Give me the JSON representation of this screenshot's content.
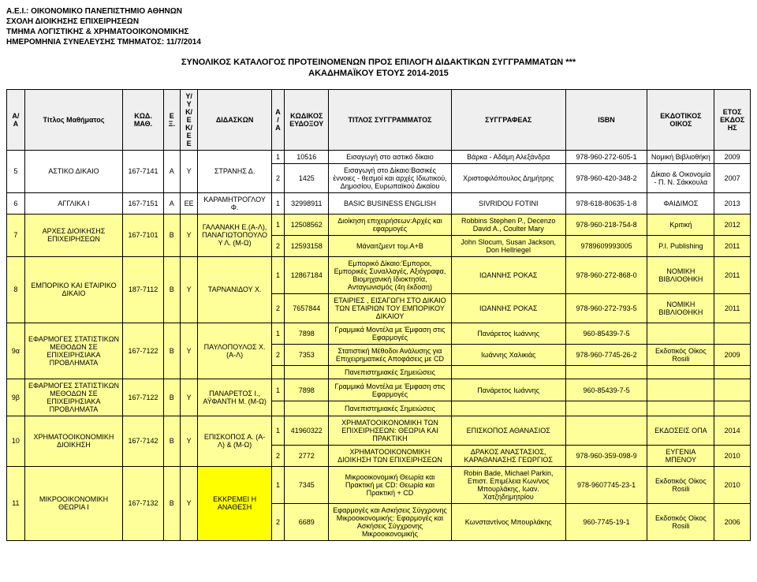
{
  "header": {
    "l1": "Α.Ε.Ι.: ΟΙΚΟΝΟΜΙΚΟ ΠΑΝΕΠΙΣΤΗΜΙΟ ΑΘΗΝΩΝ",
    "l2": "ΣΧΟΛΗ ΔΙΟΙΚΗΣΗΣ ΕΠΙΧΕΙΡΗΣΕΩΝ",
    "l3": "ΤΜΗΜΑ ΛΟΓΙΣΤΙΚΗΣ & ΧΡΗΜΑΤΟΟΙΚΟΝΟΜΙΚΗΣ",
    "l4": "ΗΜΕΡΟΜΗΝΙΑ ΣΥΝΕΛΕΥΣΗΣ ΤΜΗΜΑΤΟΣ: 11/7/2014"
  },
  "title": {
    "l1": "ΣΥΝΟΛΙΚΟΣ ΚΑΤΑΛΟΓΟΣ ΠΡΟΤΕΙΝΟΜΕΝΩΝ ΠΡΟΣ ΕΠΙΛΟΓΗ ΔΙΔΑΚΤΙΚΩΝ ΣΥΓΓΡΑΜΜΑΤΩΝ ***",
    "l2": "ΑΚΑΔΗΜΑΪΚΟΥ ΕΤΟΥΣ 2014-2015"
  },
  "columns": {
    "aa": "Α/Α",
    "course": "Τίτλος Μαθήματος",
    "code": "ΚΩΔ. ΜΑΘ.",
    "ex": "ΕΞ.",
    "yy": "Υ/Υ Κ/Ε Κ/Ε Ε",
    "instructor": "ΔΙΔΑΣΚΩΝ",
    "aa2": "Α/Α",
    "pubcode": "ΚΩΔΙΚΟΣ ΕΥΔΟΞΟΥ",
    "booktitle": "ΤΙΤΛΟΣ ΣΥΓΓΡΑΜΜΑΤΟΣ",
    "author": "ΣΥΓΓΡΑΦΕΑΣ",
    "isbn": "ISBN",
    "pubhouse": "ΕΚΔΟΤΙΚΟΣ ΟΙΚΟΣ",
    "year": "ΕΤΟΣ ΕΚΔΟΣΗΣ"
  },
  "rows": {
    "r5": {
      "aa": "5",
      "course": "ΑΣΤΙΚΟ ΔΙΚΑΙΟ",
      "code": "167-7141",
      "ex": "Α",
      "yy": "Υ",
      "instr": "ΣΤΡΑΝΗΣ Δ.",
      "b1": {
        "n": "1",
        "code": "10516",
        "title": "Εισαγωγή στο αστικό δίκαιο",
        "author": "Βάρκα - Αδάμη Αλεξάνδρα",
        "isbn": "978-960-272-605-1",
        "pub": "Νομική Βιβλιοθήκη",
        "year": "2009"
      },
      "b2": {
        "n": "2",
        "code": "1425",
        "title": "Εισαγωγή στο Δίκαιο:Βασικές έννοιες - θεσμοί και αρχές Ιδιωτικού, Δημοσίου, Ευρωπαϊκού Δικαίου",
        "author": "Χριστοφιλόπουλος Δημήτρης",
        "isbn": "978-960-420-348-2",
        "pub": "Δίκαιο & Οικονομία - Π. Ν. Σάκκουλα",
        "year": "2007"
      }
    },
    "r6": {
      "aa": "6",
      "course": "ΑΓΓΛΙΚΑ Ι",
      "code": "167-7151",
      "ex": "Α",
      "yy": "ΕΕ",
      "instr": "ΚΑΡΑΜΗΤΡΟΓΛΟΥ Φ.",
      "b1": {
        "n": "1",
        "code": "32998911",
        "title": "BASIC BUSINESS ENGLISH",
        "author": "SIVRIDOU FOTINI",
        "isbn": "978-618-80635-1-8",
        "pub": "ΦΑΙΔΙΜΟΣ",
        "year": "2013"
      }
    },
    "r7": {
      "aa": "7",
      "course": "ΑΡΧΕΣ ΔΙΟΙΚΗΣΗΣ ΕΠΙΧΕΙΡΗΣΕΩΝ",
      "code": "167-7101",
      "ex": "Β",
      "yy": "Υ",
      "instr": "ΓΑΛΑΝΑΚΗ Ε.(Α-Λ), ΠΑΝΑΓΙΩΤΟΠΟΥΛΟΥ Λ. (Μ-Ω)",
      "b1": {
        "n": "1",
        "code": "12508562",
        "title": "Διοίκηση επιχειρήσεων:Αρχές και εφαρμογές",
        "author": "Robbins Stephen P., Decenzo David A., Coulter Mary",
        "isbn": "978-960-218-754-8",
        "pub": "Κριτική",
        "year": "2012"
      },
      "b2": {
        "n": "2",
        "code": "12593158",
        "title": "Μάναιτζμεντ τομ.Α+Β",
        "author": "John Slocum, Susan Jackson, Don Hellriegel",
        "isbn": "9789609993005",
        "pub": "P.I. Publishing",
        "year": "2011"
      }
    },
    "r8": {
      "aa": "8",
      "course": "ΕΜΠΟΡΙΚΟ ΚΑΙ ΕΤΑΙΡΙΚΟ ΔΙΚΑΙΟ",
      "code": "187-7112",
      "ex": "Β",
      "yy": "Υ",
      "instr": "ΤΑΡΝΑΝΙΔΟΥ Χ.",
      "b1": {
        "n": "1",
        "code": "12867184",
        "title": "Εμπορικό Δίκαιο:Έμποροι, Εμπορικές Συναλλαγές, Αξιόγραφα, Βιομηχανική Ιδιοκτησία, Ανταγωνισμός (4η έκδοση)",
        "author": "ΙΩΑΝΝΗΣ ΡΟΚΑΣ",
        "isbn": "978-960-272-868-0",
        "pub": "ΝΟΜΙΚΗ ΒΙΒΛΙΟΘΗΚΗ",
        "year": "2011"
      },
      "b2": {
        "n": "2",
        "code": "7657844",
        "title": "ΕΤΑΙΡΙΕΣ , ΕΙΣΑΓΩΓΗ ΣΤΟ ΔΙΚΑΙΟ ΤΩΝ ΕΤΑΙΡΙΩΝ ΤΟΥ ΕΜΠΟΡΙΚΟΥ ΔΙΚΑΙΟΥ",
        "author": "ΙΩΑΝΝΗΣ ΡΟΚΑΣ",
        "isbn": "978-960-272-793-5",
        "pub": "ΝΟΜΙΚΗ ΒΙΒΛΙΟΘΗΚΗ",
        "year": "2011"
      }
    },
    "r9a": {
      "aa": "9α",
      "course": "ΕΦΑΡΜΟΓΕΣ ΣΤΑΤΙΣΤΙΚΩΝ ΜΕΘΟΔΩΝ ΣΕ ΕΠΙΧΕΙΡΗΣΙΑΚΑ ΠΡΟΒΛΗΜΑΤΑ",
      "code": "167-7122",
      "ex": "Β",
      "yy": "Υ",
      "instr": "ΠΑΥΛΟΠΟΥΛΟΣ Χ.(Α-Λ)",
      "b1": {
        "n": "1",
        "code": "7898",
        "title": "Γραμμικά Μοντέλα με Έμφαση στις Εφαρμογές",
        "author": "Πανάρετος Ιωάννης",
        "isbn": "960-85439-7-5",
        "pub": "",
        "year": ""
      },
      "b2": {
        "n": "2",
        "code": "7353",
        "title": "Στατιστική Μέθοδοι Ανάλυσης για Επιχειρηματικές Αποφάσεις με CD",
        "author": "Ιωάννης Χαλικιάς",
        "isbn": "978-960-7745-26-2",
        "pub": "Εκδοτικός Οίκος Rosili",
        "year": "2009"
      },
      "b3": {
        "title": "Πανεπιστημιακές Σημειώσεις"
      }
    },
    "r9b": {
      "aa": "9β",
      "course": "ΕΦΑΡΜΟΓΕΣ ΣΤΑΤΙΣΤΙΚΩΝ ΜΕΘΟΔΩΝ ΣΕ ΕΠΙΧΕΙΡΗΣΙΑΚΑ ΠΡΟΒΛΗΜΑΤΑ",
      "code": "167-7122",
      "ex": "Β",
      "yy": "Υ",
      "instr": "ΠΑΝΑΡΕΤΟΣ Ι., ΑΫΦΑΝΤΗ Μ. (Μ-Ω)",
      "b1": {
        "n": "1",
        "code": "7898",
        "title": "Γραμμικά Μοντέλα με Έμφαση στις Εφαρμογές",
        "author": "Πανάρετος Ιωάννης",
        "isbn": "960-85439-7-5",
        "pub": "",
        "year": ""
      },
      "b2": {
        "title": "Πανεπιστημιακές Σημειώσεις"
      }
    },
    "r10": {
      "aa": "10",
      "course": "ΧΡΗΜΑΤΟΟΙΚΟΝΟΜΙΚΗ ΔΙΟΙΚΗΣΗ",
      "code": "167-7142",
      "ex": "Β",
      "yy": "Υ",
      "instr": "ΕΠΙΣΚΟΠΟΣ Α. (Α-Λ) & (Μ-Ω)",
      "b1": {
        "n": "1",
        "code": "41960322",
        "title": "ΧΡΗΜΑΤΟΟΙΚΟΝΟΜΙΚΗ ΤΩΝ ΕΠΙΧΕΙΡΗΣΕΩΝ: ΘΕΩΡΙΑ ΚΑΙ ΠΡΑΚΤΙΚΗ",
        "author": "ΕΠΙΣΚΟΠΟΣ ΑΘΑΝΑΣΙΟΣ",
        "isbn": "",
        "pub": "ΕΚΔΟΣΕΙΣ ΟΠΑ",
        "year": "2014"
      },
      "b2": {
        "n": "2",
        "code": "2772",
        "title": "ΧΡΗΜΑΤΟΟΙΚΟΝΟΜΙΚΗ ΔΙΟΙΚΗΣΗ ΤΩΝ ΕΠΙΧΕΙΡΗΣΕΩΝ",
        "author": "ΔΡΑΚΟΣ ΑΝΑΣΤΑΣΙΟΣ, ΚΑΡΑΘΑΝΑΣΗΣ ΓΕΩΡΓΙΟΣ",
        "isbn": "978-960-359-098-9",
        "pub": "ΕΥΓΕΝΙΑ ΜΠΕΝΟΥ",
        "year": "2010"
      }
    },
    "r11": {
      "aa": "11",
      "course": "ΜΙΚΡΟΟΙΚΟΝΟΜΙΚΗ ΘΕΩΡΙΑ Ι",
      "code": "167-7132",
      "ex": "Β",
      "yy": "Υ",
      "instr": "ΕΚΚΡΕΜΕΙ Η ΑΝΑΘΕΣΗ",
      "b1": {
        "n": "1",
        "code": "7345",
        "title": "Μικροοικονομική Θεωρία και Πρακτική με CD: Θεωρία και Πρακτική + CD",
        "author": "Robin Bade, Michael Parkin, Επιστ. Επιμέλεια Κων/νος Μπουρλάκης, Ιωαν. Χατζηδημητρίου",
        "isbn": "978-9607745-23-1",
        "pub": "Εκδοτικός Οίκος Rosili",
        "year": "2010"
      },
      "b2": {
        "n": "2",
        "code": "6689",
        "title": "Εφαρμογές και Ασκήσεις Σύγχρονης Μικροοικονομικής: Εφαρμογές και Ασκήσεις Σύγχρονης Μικροοικονομικής",
        "author": "Κωνσταντίνος Μπουρλάκης",
        "isbn": "960-7745-19-1",
        "pub": "Εκδοτικός Οίκος Rosili",
        "year": "2006"
      }
    }
  },
  "colors": {
    "yellow": "#ffff00",
    "lightyellow": "#ffff99",
    "border": "#000000",
    "headerbg": "#efefef"
  }
}
